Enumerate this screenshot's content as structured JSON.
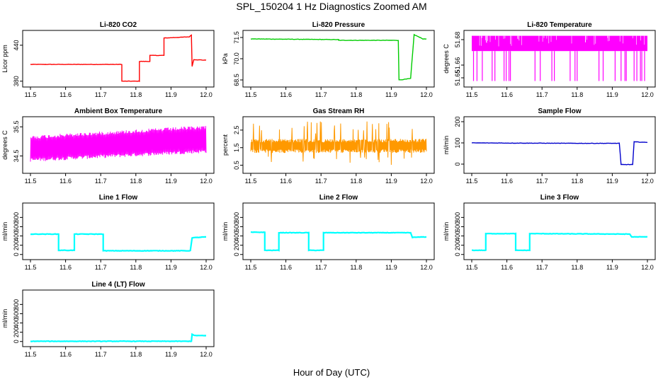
{
  "figure": {
    "title": "SPL_150204  1 Hz Diagnostics Zoomed AM",
    "xlabel": "Hour of Day (UTC)"
  },
  "chart_data": [
    {
      "type": "line",
      "title": "Li-820 CO2",
      "ylabel": "Licor ppm",
      "color": "#ff0000",
      "xlim": [
        11.5,
        12.0
      ],
      "xticks": [
        "11.5",
        "11.6",
        "11.7",
        "11.8",
        "11.9",
        "12.0"
      ],
      "ylim": [
        375,
        460
      ],
      "yticks": [
        {
          "v": 380,
          "label": "380"
        },
        {
          "v": 440,
          "label": "440"
        }
      ],
      "x": [
        11.5,
        11.76,
        11.76,
        11.81,
        11.81,
        11.84,
        11.84,
        11.88,
        11.88,
        11.952,
        11.958,
        11.96,
        11.965,
        12.0
      ],
      "y": [
        408,
        408,
        380,
        380,
        413,
        413,
        423,
        423,
        452,
        454,
        457,
        405,
        416,
        415
      ]
    },
    {
      "type": "line",
      "title": "Li-820 Pressure",
      "ylabel": "kPa",
      "color": "#00cc00",
      "xlim": [
        11.5,
        12.0
      ],
      "xticks": [
        "11.5",
        "11.6",
        "11.7",
        "11.8",
        "11.9",
        "12.0"
      ],
      "ylim": [
        68.2,
        71.8
      ],
      "yticks": [
        {
          "v": 68.5,
          "label": "68.5"
        },
        {
          "v": 70.0,
          "label": "70.0"
        },
        {
          "v": 71.5,
          "label": "71.5"
        }
      ],
      "x": [
        11.5,
        11.75,
        11.75,
        11.92,
        11.922,
        11.94,
        11.955,
        11.965,
        11.99,
        12.0
      ],
      "y": [
        71.4,
        71.35,
        71.3,
        71.3,
        68.5,
        68.55,
        68.6,
        71.7,
        71.4,
        71.4
      ]
    },
    {
      "type": "line",
      "title": "Li-820 Temperature",
      "ylabel": "degrees C",
      "color": "#ff00ff",
      "xlim": [
        11.5,
        12.0
      ],
      "xticks": [
        "11.5",
        "11.6",
        "11.7",
        "11.8",
        "11.9",
        "12.0"
      ],
      "ylim": [
        51.645,
        51.685
      ],
      "yticks": [
        {
          "v": 51.65,
          "label": "51.65"
        },
        {
          "v": 51.66,
          "label": "51.66"
        },
        {
          "v": 51.68,
          "label": "51.68"
        }
      ],
      "band": [
        51.671,
        51.683
      ],
      "spikes": [
        11.505,
        11.515,
        11.53,
        11.558,
        11.566,
        11.592,
        11.598,
        11.606,
        11.61,
        11.68,
        11.695,
        11.728,
        11.735,
        11.78,
        11.794,
        11.8,
        11.862,
        11.874,
        11.908,
        11.925,
        11.936,
        11.94,
        11.962,
        11.97,
        11.98,
        11.984,
        11.992
      ],
      "spike_low": 51.6475
    },
    {
      "type": "line",
      "title": "Ambient Box Temperature",
      "ylabel": "degrees C",
      "color": "#ff00ff",
      "xlim": [
        11.5,
        12.0
      ],
      "xticks": [
        "11.5",
        "11.6",
        "11.7",
        "11.8",
        "11.9",
        "12.0"
      ],
      "ylim": [
        34.0,
        35.75
      ],
      "yticks": [
        {
          "v": 34.5,
          "label": "34.5"
        },
        {
          "v": 35.5,
          "label": "35.5"
        }
      ],
      "band_start": [
        34.3,
        35.2
      ],
      "band_end": [
        34.6,
        35.55
      ]
    },
    {
      "type": "line",
      "title": "Gas Stream RH",
      "ylabel": "percent",
      "color": "#ff9900",
      "xlim": [
        11.5,
        12.0
      ],
      "xticks": [
        "11.5",
        "11.6",
        "11.7",
        "11.8",
        "11.9",
        "12.0"
      ],
      "ylim": [
        0.2,
        3.1
      ],
      "yticks": [
        {
          "v": 0.5,
          "label": "0.5"
        },
        {
          "v": 1.5,
          "label": "1.5"
        },
        {
          "v": 2.5,
          "label": "2.5"
        }
      ],
      "band": [
        1.2,
        2.0
      ]
    },
    {
      "type": "line",
      "title": "Sample Flow",
      "ylabel": "ml/min",
      "color": "#0000cc",
      "xlim": [
        11.5,
        12.0
      ],
      "xticks": [
        "11.5",
        "11.6",
        "11.7",
        "11.8",
        "11.9",
        "12.0"
      ],
      "ylim": [
        -30,
        210
      ],
      "yticks": [
        {
          "v": 0,
          "label": "0"
        },
        {
          "v": 100,
          "label": "100"
        },
        {
          "v": 200,
          "label": "200"
        }
      ],
      "x": [
        11.5,
        11.8,
        11.92,
        11.925,
        11.958,
        11.962,
        12.0
      ],
      "y": [
        100,
        98,
        98,
        -2,
        -2,
        105,
        102
      ]
    },
    {
      "type": "line",
      "title": "Line 1 Flow",
      "ylabel": "ml/min",
      "color": "#00ffff",
      "xlim": [
        11.5,
        12.0
      ],
      "xticks": [
        "11.5",
        "11.6",
        "11.7",
        "11.8",
        "11.9",
        "12.0"
      ],
      "ylim": [
        -50,
        1050
      ],
      "yticks": [
        {
          "v": 0,
          "label": "0"
        },
        {
          "v": 200,
          "label": "200"
        },
        {
          "v": 400,
          "label": "400"
        },
        {
          "v": 600,
          "label": "600"
        },
        {
          "v": 800,
          "label": "800"
        }
      ],
      "x": [
        11.5,
        11.58,
        11.58,
        11.625,
        11.625,
        11.707,
        11.707,
        11.955,
        11.96,
        12.0
      ],
      "y": [
        440,
        440,
        90,
        90,
        440,
        440,
        80,
        80,
        360,
        380
      ]
    },
    {
      "type": "line",
      "title": "Line 2 Flow",
      "ylabel": "ml/min",
      "color": "#00ffff",
      "xlim": [
        11.5,
        12.0
      ],
      "xticks": [
        "11.5",
        "11.6",
        "11.7",
        "11.8",
        "11.9",
        "12.0"
      ],
      "ylim": [
        -50,
        1050
      ],
      "yticks": [
        {
          "v": 0,
          "label": "0"
        },
        {
          "v": 200,
          "label": "200"
        },
        {
          "v": 400,
          "label": "400"
        },
        {
          "v": 600,
          "label": "600"
        },
        {
          "v": 800,
          "label": "800"
        }
      ],
      "x": [
        11.5,
        11.54,
        11.54,
        11.58,
        11.58,
        11.665,
        11.665,
        11.707,
        11.707,
        11.955,
        11.96,
        12.0
      ],
      "y": [
        480,
        480,
        90,
        90,
        470,
        470,
        90,
        90,
        470,
        470,
        370,
        380
      ]
    },
    {
      "type": "line",
      "title": "Line 3 Flow",
      "ylabel": "ml/min",
      "color": "#00ffff",
      "xlim": [
        11.5,
        12.0
      ],
      "xticks": [
        "11.5",
        "11.6",
        "11.7",
        "11.8",
        "11.9",
        "12.0"
      ],
      "ylim": [
        -50,
        1050
      ],
      "yticks": [
        {
          "v": 0,
          "label": "0"
        },
        {
          "v": 200,
          "label": "200"
        },
        {
          "v": 400,
          "label": "400"
        },
        {
          "v": 600,
          "label": "600"
        },
        {
          "v": 800,
          "label": "800"
        }
      ],
      "x": [
        11.5,
        11.54,
        11.54,
        11.625,
        11.625,
        11.665,
        11.665,
        11.95,
        11.955,
        12.0
      ],
      "y": [
        90,
        90,
        450,
        450,
        90,
        90,
        450,
        440,
        380,
        380
      ]
    },
    {
      "type": "line",
      "title": "Line 4 (LT) Flow",
      "ylabel": "ml/min",
      "color": "#00ffff",
      "xlim": [
        11.5,
        12.0
      ],
      "xticks": [
        "11.5",
        "11.6",
        "11.7",
        "11.8",
        "11.9",
        "12.0"
      ],
      "ylim": [
        -50,
        1050
      ],
      "yticks": [
        {
          "v": 0,
          "label": "0"
        },
        {
          "v": 200,
          "label": "200"
        },
        {
          "v": 400,
          "label": "400"
        },
        {
          "v": 600,
          "label": "600"
        },
        {
          "v": 800,
          "label": "800"
        }
      ],
      "x": [
        11.5,
        11.958,
        11.96,
        11.965,
        12.0
      ],
      "y": [
        5,
        5,
        160,
        130,
        125
      ]
    }
  ]
}
